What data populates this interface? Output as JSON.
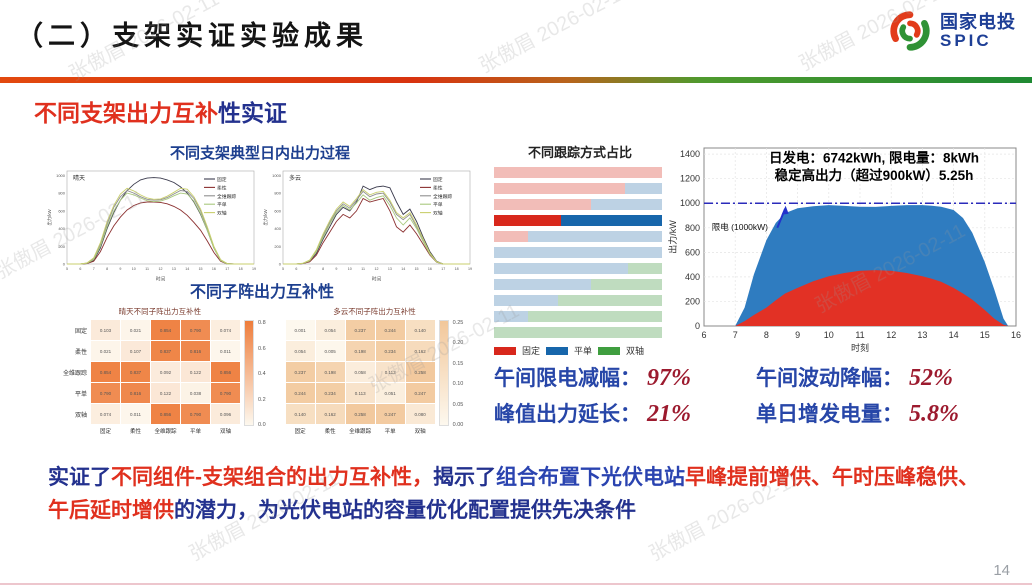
{
  "header": {
    "title": "（二）支架实证实验成果",
    "logo_cn": "国家电投",
    "logo_en": "SPIC"
  },
  "watermark": {
    "text": "张傲眉 2026-02-11"
  },
  "subtitle": {
    "part1": "不同支架出力互补",
    "part2": "性实证"
  },
  "palette": {
    "accent_red": "#d8330f",
    "accent_green": "#2f9235",
    "title_blue": "#1d3f8f",
    "stat_label_blue": "#2746a8",
    "stat_value_red": "#9c1a2e",
    "conclusion_blue": "#23318e",
    "conclusion_red": "#e0301e"
  },
  "stats": {
    "items": [
      {
        "label": "午间限电减幅：",
        "value": "97%"
      },
      {
        "label": "午间波动降幅：",
        "value": "52%"
      },
      {
        "label": "峰值出力延长：",
        "value": "21%"
      },
      {
        "label": "单日增发电量：",
        "value": "5.8%"
      }
    ]
  },
  "conclusion": {
    "segments": [
      {
        "text": "实证了",
        "color": "#23318e"
      },
      {
        "text": "不同组件-支架组合的出力互补性，",
        "color": "#e0301e"
      },
      {
        "text": "揭示了",
        "color": "#23318e"
      },
      {
        "text": "组合布置下光伏电站",
        "color": "#2a43b0"
      },
      {
        "text": "早峰提前增供、午时压峰稳供、午后延时增供",
        "color": "#e0301e"
      },
      {
        "text": "的潜力，",
        "color": "#23318e"
      },
      {
        "text": "为光伏电站的容量优化配置提供先决条件",
        "color": "#23318e"
      }
    ]
  },
  "footer": {
    "page_number": "14"
  },
  "chart_data": {
    "daily_output": {
      "type": "line",
      "title": "不同支架典型日内出力过程",
      "xlabel": "时间",
      "ylabel": "出力/kW",
      "ylim": [
        0,
        1050
      ],
      "yticks": [
        0,
        200,
        400,
        600,
        800,
        1000
      ],
      "x": [
        5,
        5.5,
        6,
        6.5,
        7,
        7.5,
        8,
        8.5,
        9,
        9.5,
        10,
        10.5,
        11,
        11.5,
        12,
        12.5,
        13,
        13.5,
        14,
        14.5,
        15,
        15.5,
        16,
        16.5,
        17,
        17.5,
        18,
        18.5,
        19
      ],
      "series_names": [
        "固定",
        "柔性",
        "全维跟踪",
        "平单",
        "双轴"
      ],
      "series_colors": [
        "#3c3c4e",
        "#8b3030",
        "#8f8f8f",
        "#a9c97e",
        "#c9cf6d"
      ],
      "panels": [
        {
          "condition": "晴天",
          "series": [
            [
              0,
              0,
              0,
              5,
              40,
              180,
              400,
              580,
              720,
              830,
              900,
              950,
              970,
              975,
              970,
              950,
              920,
              870,
              800,
              700,
              560,
              380,
              180,
              40,
              5,
              0,
              0,
              0,
              0
            ],
            [
              0,
              0,
              0,
              5,
              30,
              140,
              300,
              430,
              530,
              610,
              660,
              690,
              700,
              700,
              695,
              680,
              650,
              610,
              550,
              470,
              380,
              260,
              130,
              30,
              0,
              0,
              0,
              0,
              0
            ],
            [
              0,
              0,
              0,
              10,
              60,
              220,
              450,
              640,
              760,
              830,
              800,
              760,
              730,
              720,
              725,
              750,
              790,
              830,
              820,
              740,
              600,
              400,
              190,
              45,
              5,
              0,
              0,
              0,
              0
            ],
            [
              0,
              0,
              0,
              8,
              50,
              200,
              420,
              600,
              720,
              800,
              780,
              745,
              715,
              705,
              710,
              735,
              770,
              800,
              790,
              710,
              570,
              380,
              180,
              40,
              0,
              0,
              0,
              0,
              0
            ],
            [
              0,
              0,
              0,
              12,
              70,
              240,
              480,
              660,
              790,
              855,
              825,
              780,
              745,
              730,
              735,
              765,
              810,
              855,
              845,
              760,
              620,
              420,
              200,
              50,
              5,
              0,
              0,
              0,
              0
            ]
          ]
        },
        {
          "condition": "多云",
          "series": [
            [
              0,
              0,
              0,
              5,
              30,
              120,
              280,
              420,
              560,
              640,
              600,
              700,
              880,
              840,
              870,
              880,
              860,
              700,
              560,
              620,
              480,
              300,
              140,
              30,
              0,
              0,
              0,
              0,
              0
            ],
            [
              0,
              0,
              0,
              5,
              25,
              100,
              240,
              360,
              480,
              560,
              520,
              600,
              740,
              700,
              720,
              740,
              600,
              420,
              360,
              440,
              340,
              220,
              100,
              20,
              0,
              0,
              0,
              0,
              0
            ],
            [
              0,
              0,
              0,
              8,
              40,
              150,
              320,
              470,
              600,
              680,
              630,
              720,
              820,
              760,
              790,
              800,
              700,
              560,
              500,
              560,
              420,
              270,
              120,
              25,
              0,
              0,
              0,
              0,
              0
            ],
            [
              0,
              0,
              0,
              7,
              35,
              140,
              300,
              450,
              580,
              660,
              610,
              690,
              780,
              720,
              750,
              770,
              660,
              520,
              440,
              520,
              400,
              250,
              110,
              22,
              0,
              0,
              0,
              0,
              0
            ],
            [
              0,
              0,
              0,
              9,
              45,
              160,
              340,
              490,
              620,
              700,
              650,
              740,
              840,
              780,
              810,
              820,
              720,
              580,
              520,
              580,
              440,
              280,
              125,
              26,
              0,
              0,
              0,
              0,
              0
            ]
          ]
        }
      ]
    },
    "complementarity": {
      "type": "heatmap",
      "title": "不同子阵出力互补性",
      "row_labels": [
        "固定",
        "柔性",
        "全维跟踪",
        "平单",
        "双轴"
      ],
      "col_labels": [
        "固定",
        "柔性",
        "全维跟踪",
        "平单",
        "双轴"
      ],
      "panels": [
        {
          "subtitle": "晴天不同子阵出力互补性",
          "show_row_labels": true,
          "vmax": 0.9,
          "max_color": "#ee7d3c",
          "colorbar_ticks": [
            "0.8",
            "0.6",
            "0.4",
            "0.2",
            "0.0"
          ],
          "values": [
            [
              0.103,
              0.021,
              0.854,
              0.79,
              0.074
            ],
            [
              0.021,
              0.107,
              0.837,
              0.816,
              0.011
            ],
            [
              0.854,
              0.837,
              0.092,
              0.122,
              0.856
            ],
            [
              0.79,
              0.816,
              0.122,
              0.038,
              0.79
            ],
            [
              0.074,
              0.011,
              0.856,
              0.79,
              0.096
            ]
          ]
        },
        {
          "subtitle": "多云不同子阵出力互补性",
          "show_row_labels": false,
          "vmax": 0.27,
          "max_color": "#f2c79a",
          "colorbar_ticks": [
            "0.25",
            "0.20",
            "0.15",
            "0.10",
            "0.05",
            "0.00"
          ],
          "values": [
            [
              0.001,
              0.054,
              0.237,
              0.244,
              0.14
            ],
            [
              0.054,
              0.005,
              0.198,
              0.234,
              0.162
            ],
            [
              0.237,
              0.198,
              0.058,
              0.113,
              0.258
            ],
            [
              0.244,
              0.234,
              0.113,
              0.051,
              0.247
            ],
            [
              0.14,
              0.162,
              0.258,
              0.247,
              0.08
            ]
          ]
        }
      ]
    },
    "tracking_mix": {
      "type": "bar",
      "title": "不同跟踪方式占比",
      "legend": [
        {
          "label": "固定",
          "color": "#d8281c"
        },
        {
          "label": "平单",
          "color": "#1766ab"
        },
        {
          "label": "双轴",
          "color": "#3f9e3f"
        }
      ],
      "faded_colors": {
        "fixed": "#f2bdb8",
        "flat": "#bdd2e4",
        "dual": "#bfdcbf"
      },
      "strong_colors": {
        "fixed": "#d8281c",
        "flat": "#1766ab",
        "dual": "#3f9e3f"
      },
      "rows": [
        {
          "fixed": 100,
          "flat": 0,
          "dual": 0,
          "highlight": false
        },
        {
          "fixed": 78,
          "flat": 22,
          "dual": 0,
          "highlight": false
        },
        {
          "fixed": 58,
          "flat": 42,
          "dual": 0,
          "highlight": false
        },
        {
          "fixed": 40,
          "flat": 60,
          "dual": 0,
          "highlight": true
        },
        {
          "fixed": 20,
          "flat": 80,
          "dual": 0,
          "highlight": false
        },
        {
          "fixed": 0,
          "flat": 100,
          "dual": 0,
          "highlight": false
        },
        {
          "fixed": 0,
          "flat": 80,
          "dual": 20,
          "highlight": false
        },
        {
          "fixed": 0,
          "flat": 58,
          "dual": 42,
          "highlight": false
        },
        {
          "fixed": 0,
          "flat": 38,
          "dual": 62,
          "highlight": false
        },
        {
          "fixed": 0,
          "flat": 20,
          "dual": 80,
          "highlight": false
        },
        {
          "fixed": 0,
          "flat": 0,
          "dual": 100,
          "highlight": false
        }
      ]
    },
    "day_profile": {
      "type": "area",
      "note_line1": "日发电：6742kWh, 限电量：8kWh",
      "note_line2": "稳定高出力（超过900kW）5.25h",
      "limit_label": "限电 (1000kW)",
      "limit_value": 1000,
      "limit_line_color": "#2b2bbb",
      "xlabel": "时刻",
      "ylabel": "出力/kW",
      "xlim": [
        6,
        16
      ],
      "ylim": [
        0,
        1450
      ],
      "xticks": [
        6,
        7,
        8,
        9,
        10,
        11,
        12,
        13,
        14,
        15,
        16
      ],
      "yticks": [
        0,
        200,
        400,
        600,
        800,
        1000,
        1200,
        1400
      ],
      "x": [
        7,
        7.3,
        7.6,
        8,
        8.3,
        8.6,
        9,
        9.5,
        10,
        10.5,
        11,
        11.5,
        12,
        12.5,
        13,
        13.3,
        13.6,
        14,
        14.3,
        14.6,
        15,
        15.3,
        15.6,
        15.75
      ],
      "series": [
        {
          "color": "#2f7cc0",
          "y": [
            0,
            150,
            420,
            700,
            840,
            920,
            960,
            975,
            985,
            978,
            972,
            970,
            978,
            985,
            985,
            980,
            972,
            945,
            880,
            760,
            520,
            300,
            60,
            0
          ]
        },
        {
          "color": "#e23125",
          "y": [
            0,
            40,
            90,
            150,
            210,
            265,
            310,
            365,
            405,
            432,
            450,
            455,
            450,
            432,
            405,
            385,
            360,
            310,
            265,
            215,
            130,
            60,
            10,
            0
          ]
        }
      ]
    }
  }
}
